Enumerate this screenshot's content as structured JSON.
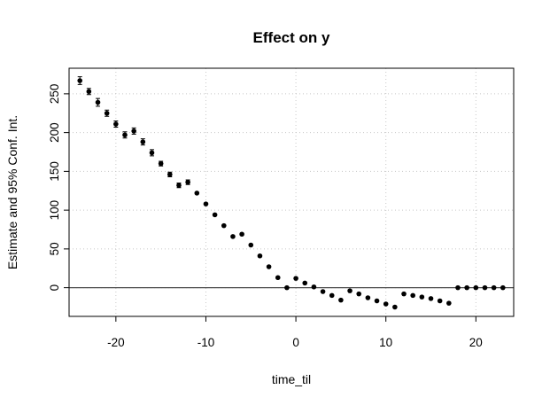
{
  "chart_data": {
    "type": "scatter",
    "title": "Effect on y",
    "xlabel": "time_til",
    "ylabel": "Estimate and 95% Conf. Int.",
    "xlim": [
      -25.2,
      24.2
    ],
    "ylim": [
      -37,
      283
    ],
    "x_ticks": [
      -20,
      -10,
      0,
      10,
      20
    ],
    "x_tick_labels": [
      "-20",
      "-10",
      "0",
      "10",
      "20"
    ],
    "y_ticks": [
      0,
      50,
      100,
      150,
      200,
      250
    ],
    "y_tick_labels": [
      "0",
      "50",
      "100",
      "150",
      "200",
      "250"
    ],
    "grid": true,
    "reference_line": 0,
    "points": [
      {
        "x": -24,
        "y": 267,
        "lo": 262,
        "hi": 272
      },
      {
        "x": -23,
        "y": 253,
        "lo": 249,
        "hi": 257
      },
      {
        "x": -22,
        "y": 239,
        "lo": 234,
        "hi": 244
      },
      {
        "x": -21,
        "y": 225,
        "lo": 221,
        "hi": 229
      },
      {
        "x": -20,
        "y": 211,
        "lo": 207,
        "hi": 215
      },
      {
        "x": -19,
        "y": 197,
        "lo": 193,
        "hi": 201
      },
      {
        "x": -18,
        "y": 202,
        "lo": 198,
        "hi": 206
      },
      {
        "x": -17,
        "y": 188,
        "lo": 184,
        "hi": 192
      },
      {
        "x": -16,
        "y": 174,
        "lo": 170,
        "hi": 178
      },
      {
        "x": -15,
        "y": 160,
        "lo": 157,
        "hi": 163
      },
      {
        "x": -14,
        "y": 146,
        "lo": 143,
        "hi": 149
      },
      {
        "x": -13,
        "y": 132,
        "lo": 129,
        "hi": 135
      },
      {
        "x": -12,
        "y": 136,
        "lo": 133,
        "hi": 139
      },
      {
        "x": -11,
        "y": 122,
        "lo": 120,
        "hi": 124
      },
      {
        "x": -10,
        "y": 108,
        "lo": 106,
        "hi": 110
      },
      {
        "x": -9,
        "y": 94,
        "lo": 93,
        "hi": 95
      },
      {
        "x": -8,
        "y": 80,
        "lo": 79,
        "hi": 81
      },
      {
        "x": -7,
        "y": 66,
        "lo": 65,
        "hi": 67
      },
      {
        "x": -6,
        "y": 69,
        "lo": 68,
        "hi": 70
      },
      {
        "x": -5,
        "y": 55,
        "lo": 54,
        "hi": 56
      },
      {
        "x": -4,
        "y": 41,
        "lo": 40,
        "hi": 42
      },
      {
        "x": -3,
        "y": 27,
        "lo": 26,
        "hi": 28
      },
      {
        "x": -2,
        "y": 13,
        "lo": 12,
        "hi": 14
      },
      {
        "x": -1,
        "y": 0,
        "lo": 0,
        "hi": 0
      },
      {
        "x": 0,
        "y": 12,
        "lo": 11,
        "hi": 13
      },
      {
        "x": 1,
        "y": 6,
        "lo": 5,
        "hi": 7
      },
      {
        "x": 2,
        "y": 1,
        "lo": 0,
        "hi": 2
      },
      {
        "x": 3,
        "y": -5,
        "lo": -6,
        "hi": -4
      },
      {
        "x": 4,
        "y": -10,
        "lo": -11,
        "hi": -9
      },
      {
        "x": 5,
        "y": -16,
        "lo": -17,
        "hi": -15
      },
      {
        "x": 6,
        "y": -4,
        "lo": -5,
        "hi": -3
      },
      {
        "x": 7,
        "y": -8,
        "lo": -9,
        "hi": -7
      },
      {
        "x": 8,
        "y": -13,
        "lo": -14,
        "hi": -12
      },
      {
        "x": 9,
        "y": -17,
        "lo": -18,
        "hi": -16
      },
      {
        "x": 10,
        "y": -21,
        "lo": -22,
        "hi": -20
      },
      {
        "x": 11,
        "y": -25,
        "lo": -26,
        "hi": -24
      },
      {
        "x": 12,
        "y": -8,
        "lo": -9,
        "hi": -7
      },
      {
        "x": 13,
        "y": -10,
        "lo": -11,
        "hi": -9
      },
      {
        "x": 14,
        "y": -12,
        "lo": -13,
        "hi": -11
      },
      {
        "x": 15,
        "y": -14,
        "lo": -15,
        "hi": -13
      },
      {
        "x": 16,
        "y": -17,
        "lo": -18,
        "hi": -16
      },
      {
        "x": 17,
        "y": -20,
        "lo": -21,
        "hi": -19
      },
      {
        "x": 18,
        "y": 0,
        "lo": 0,
        "hi": 0
      },
      {
        "x": 19,
        "y": 0,
        "lo": 0,
        "hi": 0
      },
      {
        "x": 20,
        "y": 0,
        "lo": 0,
        "hi": 0
      },
      {
        "x": 21,
        "y": 0,
        "lo": 0,
        "hi": 0
      },
      {
        "x": 22,
        "y": 0,
        "lo": 0,
        "hi": 0
      },
      {
        "x": 23,
        "y": 0,
        "lo": 0,
        "hi": 0
      }
    ],
    "colors": {
      "point": "#000000",
      "grid": "#c8c8c8",
      "reference_line": "#4a4a4a",
      "axis": "#000000"
    }
  }
}
